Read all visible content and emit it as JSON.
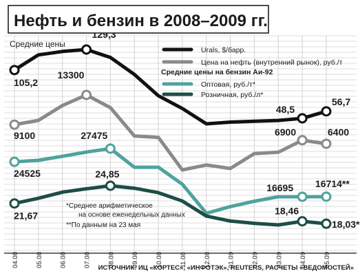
{
  "chart_data": {
    "type": "line",
    "title": "Нефть и бензин в 2008–2009 гг.",
    "subtitle": "Средние цены",
    "x": [
      "04.08",
      "05.08",
      "06.08",
      "07.08",
      "08.08",
      "09.08",
      "10.08",
      "11.08",
      "12.08",
      "01.09",
      "02.09",
      "03.09",
      "04.09",
      "05.09"
    ],
    "legend_placement": "top-right",
    "legend_group_label": "Средние цены на бензин Аи-92",
    "grid": true,
    "colors": {
      "black": "#111111",
      "gray": "#8a8a8a",
      "teal_light": "#4fa39c",
      "teal_dark": "#1d4d46"
    },
    "series": [
      {
        "name": "Urals, $/барр.",
        "color": "#111111",
        "values": [
          105.2,
          123,
          127,
          129.3,
          120,
          100,
          75,
          60,
          42,
          44,
          45,
          46,
          48.5,
          56.7
        ],
        "labels": [
          {
            "i": 0,
            "text": "105,2"
          },
          {
            "i": 3,
            "text": "129,3"
          },
          {
            "i": 12,
            "text": "48,5"
          },
          {
            "i": 13,
            "text": "56,7"
          }
        ]
      },
      {
        "name": "Цена на нефть (внутренний рынок), руб./т",
        "color": "#8a8a8a",
        "values": [
          9100,
          9700,
          11800,
          13300,
          11500,
          7500,
          7300,
          2700,
          3400,
          2900,
          5000,
          5200,
          6900,
          6400
        ],
        "labels": [
          {
            "i": 0,
            "text": "9100"
          },
          {
            "i": 3,
            "text": "13300"
          },
          {
            "i": 12,
            "text": "6900"
          },
          {
            "i": 13,
            "text": "6400"
          }
        ]
      },
      {
        "name": "Оптовая, руб./т*",
        "color": "#4fa39c",
        "values": [
          24525,
          24850,
          25750,
          26700,
          27475,
          23300,
          23300,
          19500,
          13000,
          14500,
          15700,
          16700,
          16695,
          16714
        ],
        "labels": [
          {
            "i": 0,
            "text": "24525"
          },
          {
            "i": 4,
            "text": "27475"
          },
          {
            "i": 12,
            "text": "16695"
          },
          {
            "i": 13,
            "text": "16714**"
          }
        ]
      },
      {
        "name": "Розничная, руб./л*",
        "color": "#1d4d46",
        "values": [
          21.67,
          22.6,
          23.7,
          24.3,
          24.85,
          24.4,
          23.6,
          22.1,
          19.4,
          18.5,
          18.1,
          17.8,
          18.46,
          18.03
        ],
        "labels": [
          {
            "i": 0,
            "text": "21,67"
          },
          {
            "i": 4,
            "text": "24,85"
          },
          {
            "i": 12,
            "text": "18,46"
          },
          {
            "i": 13,
            "text": "18,03**"
          }
        ]
      }
    ],
    "footnotes": [
      "*Среднее арифметическое",
      "на основе еженедельных данных",
      "**По данным на 23 мая"
    ],
    "source": "ИСТОЧНИК: ИЦ «КОРТЕС», «ИНФОТЭК», REUTERS, РАСЧЕТЫ «ВЕДОМОСТЕЙ»"
  }
}
